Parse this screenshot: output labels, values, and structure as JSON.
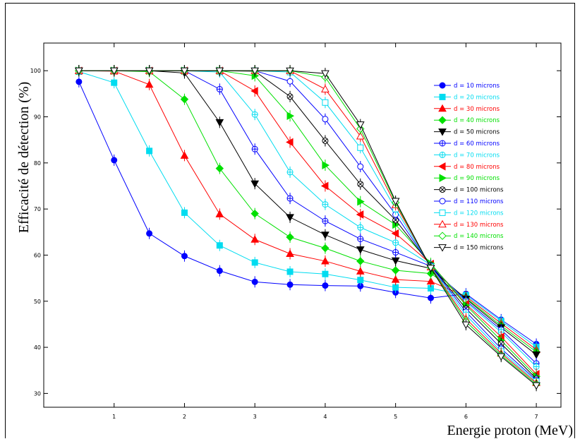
{
  "chart_data": {
    "type": "line",
    "ylabel": "Efficacité de détection (%)",
    "xlabel": "Energie proton (MeV)",
    "xlim": [
      0,
      7.35
    ],
    "ylim": [
      27,
      106
    ],
    "x_ticks": [
      1,
      2,
      3,
      4,
      5,
      6,
      7
    ],
    "y_ticks": [
      30,
      40,
      50,
      60,
      70,
      80,
      90,
      100
    ],
    "x": [
      0.5,
      1,
      1.5,
      2,
      2.5,
      3,
      3.5,
      4,
      4.5,
      5,
      5.5,
      6,
      6.5,
      7
    ],
    "grid": false,
    "legend_position": "right",
    "series": [
      {
        "name": "d = 10 microns",
        "color": "#0000ff",
        "marker": "circle-filled",
        "values": [
          97.6,
          80.6,
          64.7,
          59.8,
          56.6,
          54.2,
          53.6,
          53.4,
          53.3,
          51.9,
          50.7,
          51.6,
          46.0,
          40.7
        ]
      },
      {
        "name": "d = 20 microns",
        "color": "#00dcf0",
        "marker": "square-filled",
        "values": [
          99.8,
          97.4,
          82.6,
          69.2,
          62.1,
          58.4,
          56.4,
          55.9,
          54.6,
          53.0,
          52.8,
          51.3,
          45.7,
          40.1
        ]
      },
      {
        "name": "d = 30 microns",
        "color": "#ff0000",
        "marker": "triangle-filled",
        "values": [
          100,
          99.9,
          97.0,
          81.6,
          68.9,
          63.4,
          60.3,
          58.7,
          56.5,
          54.7,
          54.3,
          51.0,
          45.2,
          39.5
        ]
      },
      {
        "name": "d = 40 microns",
        "color": "#00e000",
        "marker": "diamond-filled",
        "values": [
          100,
          100,
          99.8,
          93.8,
          78.8,
          69.0,
          63.9,
          61.5,
          58.7,
          56.7,
          56.0,
          50.7,
          44.7,
          39.0
        ]
      },
      {
        "name": "d = 50 microns",
        "color": "#000000",
        "marker": "tridown-filled",
        "values": [
          100,
          100,
          100,
          99.5,
          88.8,
          75.5,
          68.2,
          64.4,
          61.2,
          58.8,
          57.1,
          50.5,
          44.3,
          38.4
        ]
      },
      {
        "name": "d = 60 microns",
        "color": "#0000ff",
        "marker": "circle-plus",
        "values": [
          100,
          100,
          100,
          100,
          96.0,
          83.0,
          72.3,
          67.4,
          63.5,
          60.6,
          57.6,
          50.1,
          43.8,
          36.5
        ]
      },
      {
        "name": "d = 70 microns",
        "color": "#00dcf0",
        "marker": "circle-plus",
        "values": [
          100,
          100,
          100,
          100,
          99.7,
          90.5,
          78.0,
          71.0,
          66.0,
          62.7,
          57.9,
          49.8,
          43.3,
          35.8
        ]
      },
      {
        "name": "d = 80 microns",
        "color": "#ff0000",
        "marker": "trileft-filled",
        "values": [
          100,
          100,
          100,
          100,
          100,
          95.6,
          84.5,
          75.0,
          68.8,
          64.7,
          58.1,
          49.4,
          42.3,
          34.2
        ]
      },
      {
        "name": "d = 90 microns",
        "color": "#00e000",
        "marker": "triright-filled",
        "values": [
          100,
          100,
          100,
          100,
          100,
          98.9,
          90.2,
          79.5,
          71.6,
          66.6,
          58.2,
          49.1,
          41.5,
          33.7
        ]
      },
      {
        "name": "d = 100 microns",
        "color": "#000000",
        "marker": "circle-x",
        "values": [
          100,
          100,
          100,
          100,
          100,
          99.9,
          94.4,
          84.8,
          75.4,
          67.6,
          57.8,
          48.4,
          40.8,
          33.2
        ]
      },
      {
        "name": "d = 110 microns",
        "color": "#0000ff",
        "marker": "circle-open",
        "values": [
          100,
          100,
          100,
          100,
          100,
          100,
          97.7,
          89.5,
          79.2,
          68.8,
          57.7,
          47.7,
          39.7,
          32.9
        ]
      },
      {
        "name": "d = 120 microns",
        "color": "#00dcf0",
        "marker": "square-open",
        "values": [
          100,
          100,
          100,
          100,
          100,
          100,
          99.7,
          93.1,
          83.3,
          70.0,
          57.5,
          47.0,
          39.1,
          32.6
        ]
      },
      {
        "name": "d = 130 microns",
        "color": "#ff0000",
        "marker": "triangle-open",
        "values": [
          100,
          100,
          100,
          100,
          100,
          100,
          100,
          96.0,
          85.8,
          70.9,
          57.4,
          46.2,
          38.7,
          32.3
        ]
      },
      {
        "name": "d = 140 microns",
        "color": "#00e000",
        "marker": "diamond-open",
        "values": [
          100,
          100,
          100,
          100,
          100,
          100,
          100,
          98.6,
          87.4,
          71.4,
          57.3,
          45.6,
          38.3,
          32.0
        ]
      },
      {
        "name": "d = 150 microns",
        "color": "#000000",
        "marker": "tridown-open",
        "values": [
          100,
          100,
          100,
          100,
          100,
          100,
          100,
          99.4,
          88.3,
          71.7,
          57.2,
          44.9,
          38.0,
          31.7
        ]
      }
    ]
  }
}
